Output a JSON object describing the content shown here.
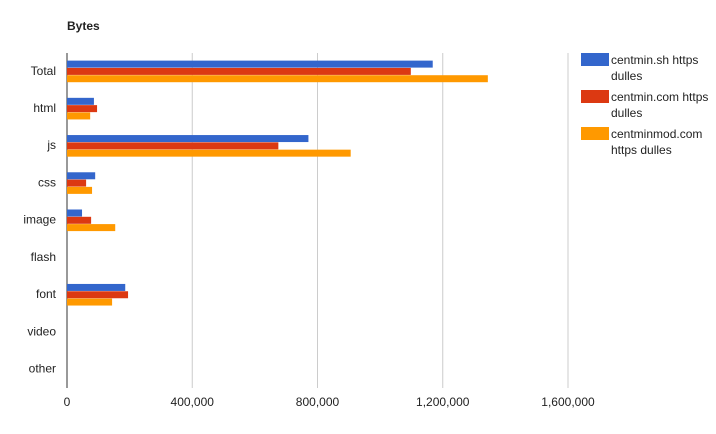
{
  "chart_data": {
    "type": "hbar",
    "title": "Bytes",
    "categories": [
      "Total",
      "html",
      "js",
      "css",
      "image",
      "flash",
      "font",
      "video",
      "other"
    ],
    "series": [
      {
        "name": "centmin.sh https dulles",
        "color": "#3366cc",
        "values": [
          1168000,
          86000,
          771000,
          90000,
          48000,
          0,
          186000,
          0,
          0
        ]
      },
      {
        "name": "centmin.com https dulles",
        "color": "#dc3912",
        "values": [
          1098000,
          96000,
          675000,
          61000,
          77000,
          0,
          195000,
          0,
          0
        ]
      },
      {
        "name": "centminmod.com https dulles",
        "color": "#ff9900",
        "values": [
          1344000,
          74000,
          906000,
          80000,
          154000,
          0,
          144000,
          0,
          0
        ]
      }
    ],
    "xlim": [
      0,
      1600000
    ],
    "xticks": [
      0,
      {
        "value": 400000,
        "label": "400,000"
      },
      {
        "value": 800000,
        "label": "800,000"
      },
      {
        "value": 1200000,
        "label": "1,200,000"
      },
      {
        "value": 1600000,
        "label": "1,600,000"
      }
    ],
    "grid": true
  }
}
